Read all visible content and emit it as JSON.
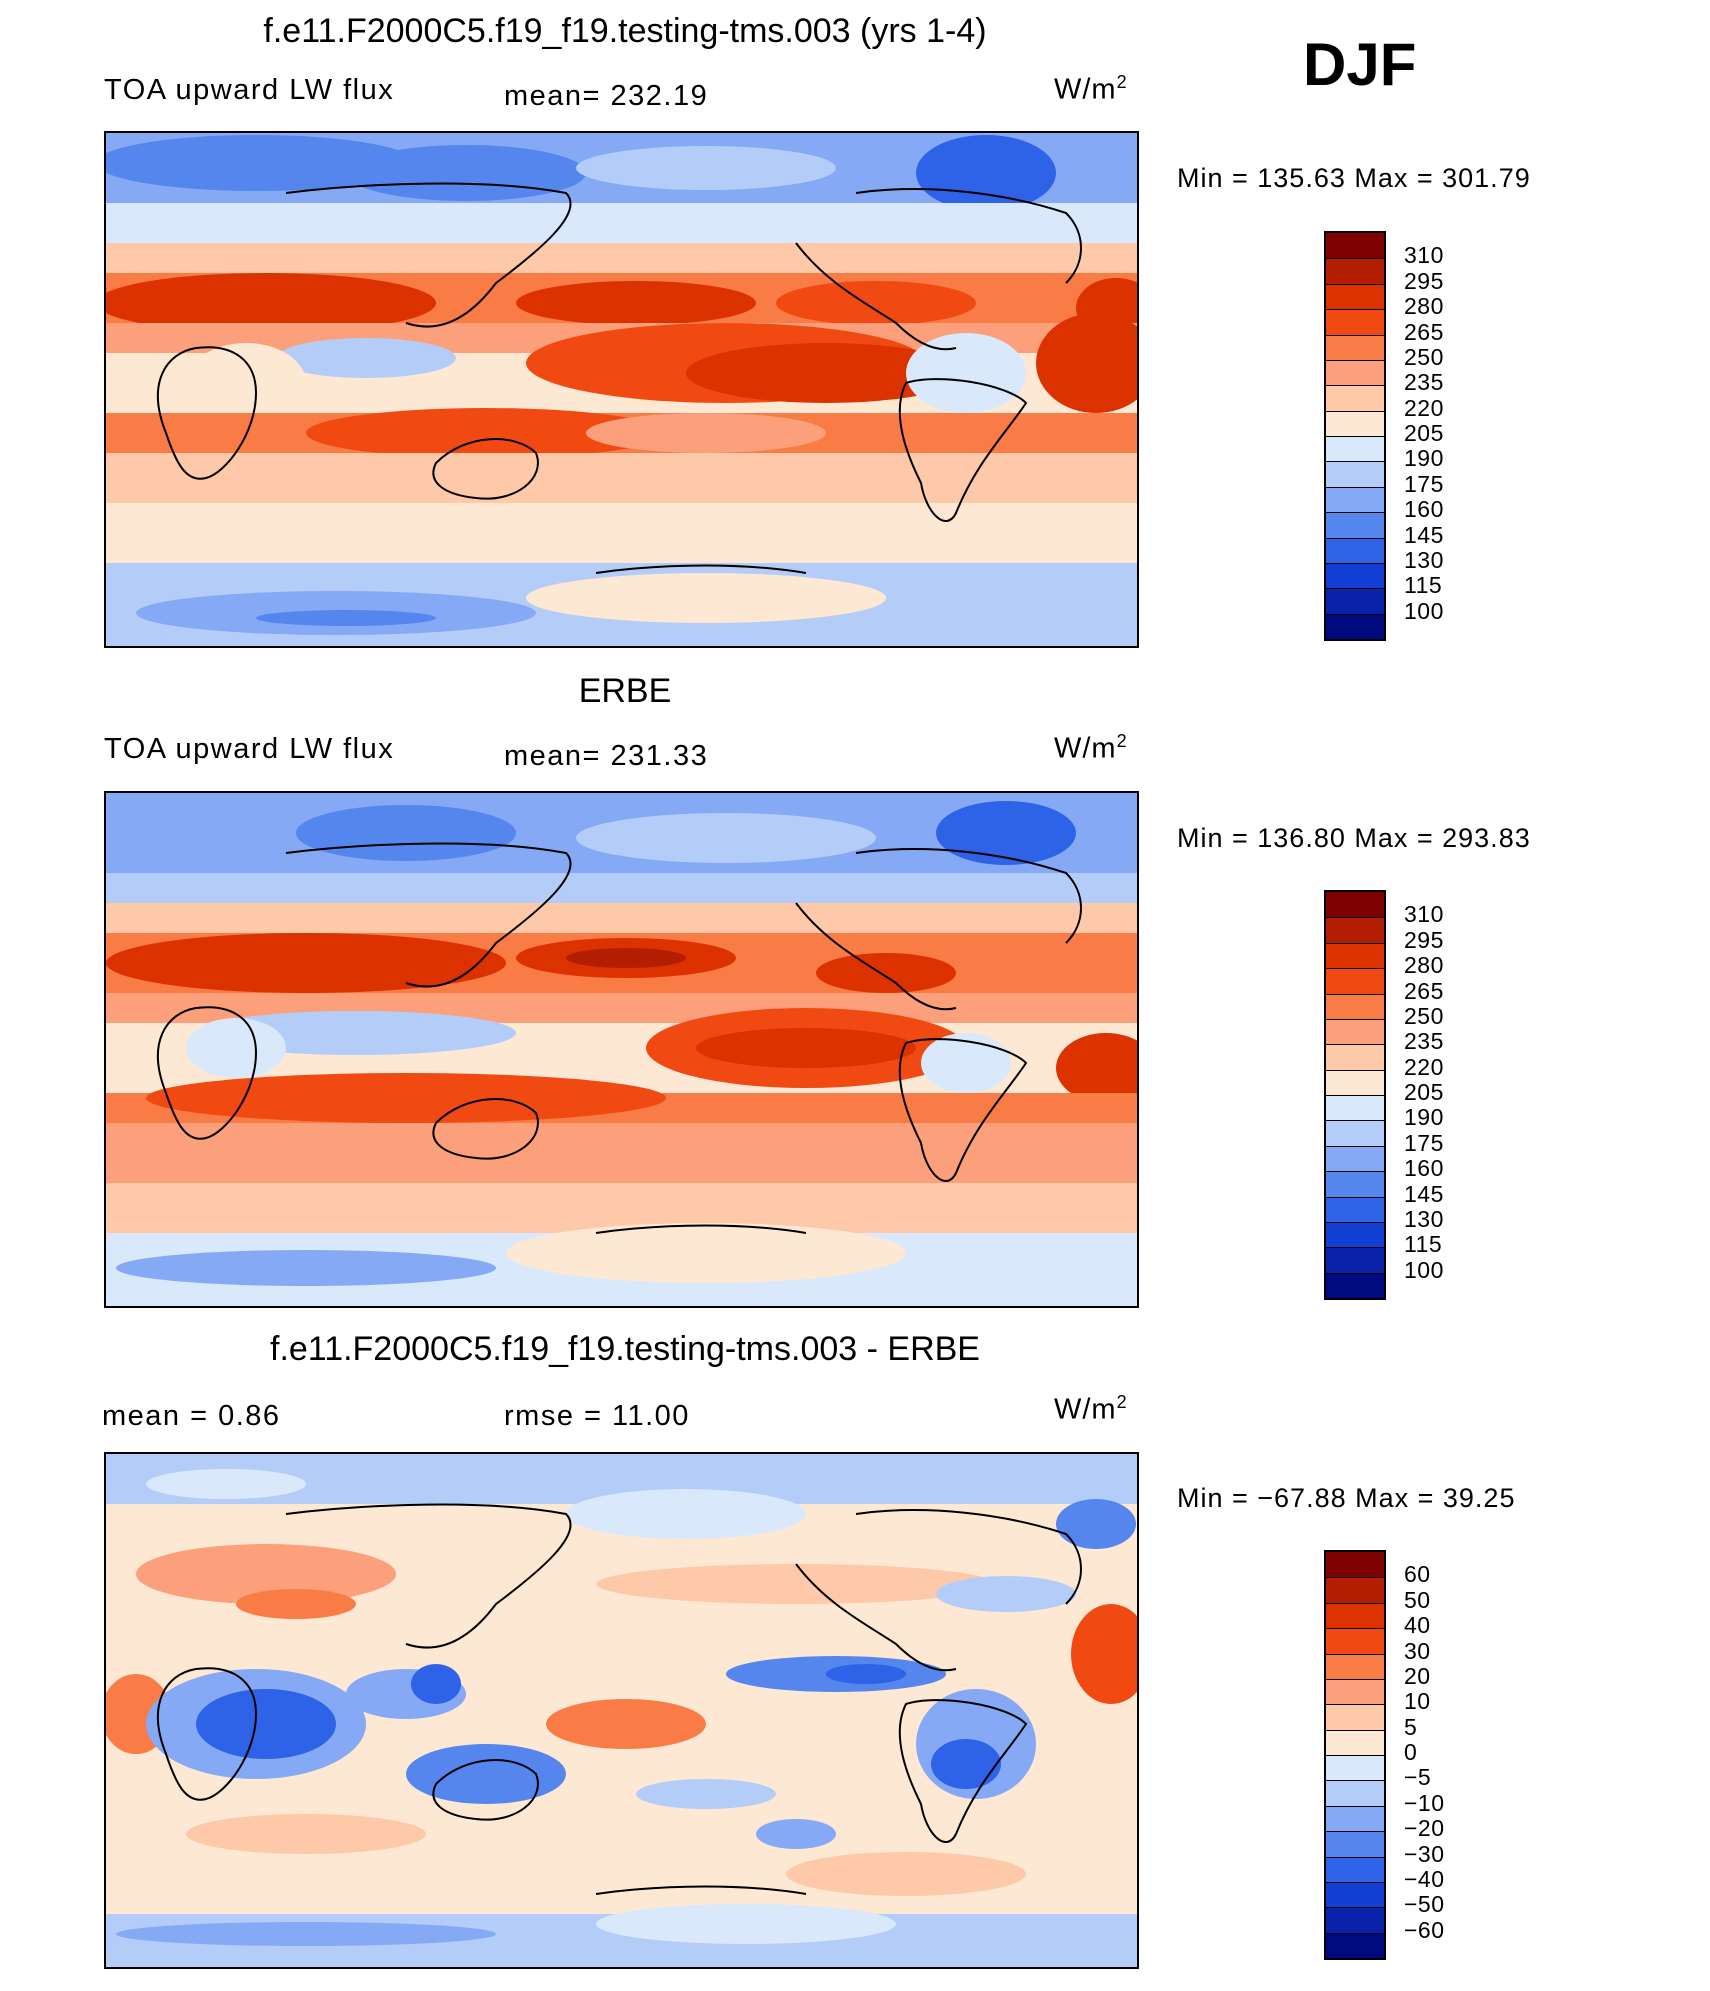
{
  "season": "DJF",
  "units_base": "W/m",
  "units_sup": "2",
  "panels": [
    {
      "title": "f.e11.F2000C5.f19_f19.testing-tms.003 (yrs 1-4)",
      "left_label": "TOA upward LW flux",
      "center_label": "mean=  232.19",
      "minmax": "Min  =  135.63  Max  =  301.79"
    },
    {
      "title": "ERBE",
      "left_label": "TOA upward LW flux",
      "center_label": "mean=  231.33",
      "minmax": "Min  =  136.80  Max  =  293.83"
    },
    {
      "title": "f.e11.F2000C5.f19_f19.testing-tms.003 - ERBE",
      "left_label": "mean  =      0.86",
      "center_label": "rmse  =    11.00",
      "minmax": "Min  =  −67.88  Max  =     39.25"
    }
  ],
  "colorbars": {
    "flux": {
      "labels": [
        "310",
        "295",
        "280",
        "265",
        "250",
        "235",
        "220",
        "205",
        "190",
        "175",
        "160",
        "145",
        "130",
        "115",
        "100"
      ],
      "colors": [
        "#7f0000",
        "#b31e00",
        "#dc3200",
        "#f04a12",
        "#f97b45",
        "#fba07a",
        "#fdc9a8",
        "#fde8d4",
        "#d9e9fb",
        "#b3cdf8",
        "#85a9f4",
        "#5486ee",
        "#2e62e7",
        "#123fd4",
        "#0a22aa",
        "#000a7f"
      ]
    },
    "diff": {
      "labels": [
        "60",
        "50",
        "40",
        "30",
        "20",
        "10",
        "5",
        "0",
        "−5",
        "−10",
        "−20",
        "−30",
        "−40",
        "−50",
        "−60"
      ],
      "colors": [
        "#7f0000",
        "#b31e00",
        "#dc3200",
        "#f04a12",
        "#f97b45",
        "#fba07a",
        "#fdc9a8",
        "#fde8d4",
        "#d9e9fb",
        "#b3cdf8",
        "#85a9f4",
        "#5486ee",
        "#2e62e7",
        "#123fd4",
        "#0a22aa",
        "#000a7f"
      ]
    }
  }
}
